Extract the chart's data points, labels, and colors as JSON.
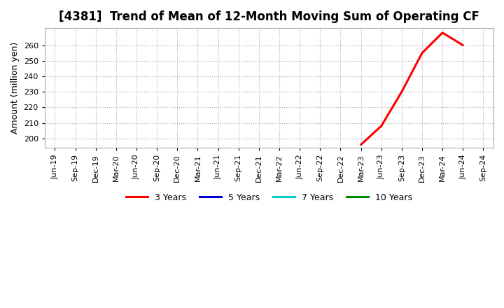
{
  "title": "[4381]  Trend of Mean of 12-Month Moving Sum of Operating CF",
  "ylabel": "Amount (million yen)",
  "background_color": "#ffffff",
  "plot_bg_color": "#ffffff",
  "grid_color": "#aaaaaa",
  "x_tick_labels": [
    "Jun-19",
    "Sep-19",
    "Dec-19",
    "Mar-20",
    "Jun-20",
    "Sep-20",
    "Dec-20",
    "Mar-21",
    "Jun-21",
    "Sep-21",
    "Dec-21",
    "Mar-22",
    "Jun-22",
    "Sep-22",
    "Dec-22",
    "Mar-23",
    "Jun-23",
    "Sep-23",
    "Dec-23",
    "Mar-24",
    "Jun-24",
    "Sep-24"
  ],
  "ylim_min": 194,
  "ylim_max": 271,
  "yticks": [
    200,
    210,
    220,
    230,
    240,
    250,
    260
  ],
  "series": [
    {
      "label": "3 Years",
      "color": "#ff0000",
      "linewidth": 2.2,
      "x_indices": [
        15,
        16,
        17,
        18,
        19,
        20
      ],
      "y_values": [
        196.0,
        208.0,
        230.0,
        255.0,
        268.0,
        260.0
      ]
    },
    {
      "label": "5 Years",
      "color": "#0000cc",
      "linewidth": 2.2,
      "x_indices": [],
      "y_values": []
    },
    {
      "label": "7 Years",
      "color": "#00cccc",
      "linewidth": 2.2,
      "x_indices": [],
      "y_values": []
    },
    {
      "label": "10 Years",
      "color": "#008800",
      "linewidth": 2.2,
      "x_indices": [],
      "y_values": []
    }
  ],
  "title_fontsize": 12,
  "tick_fontsize": 8,
  "ylabel_fontsize": 9,
  "legend_fontsize": 9
}
